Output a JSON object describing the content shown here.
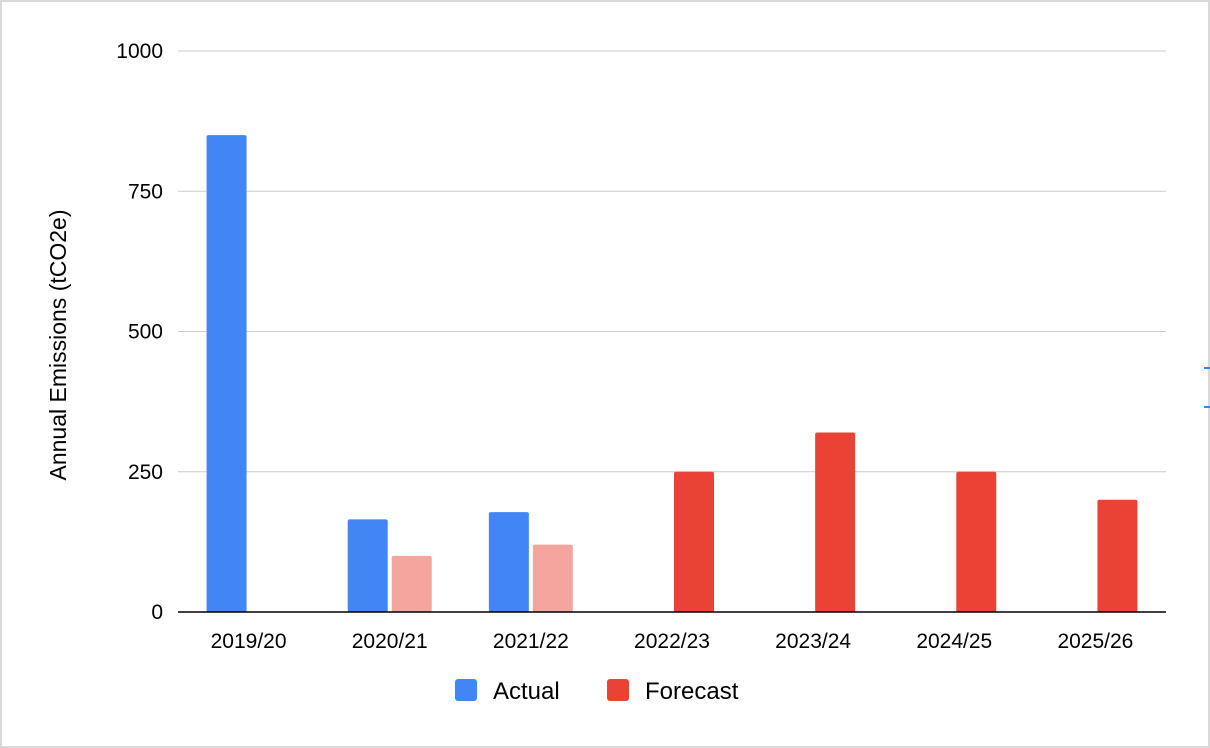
{
  "chart_data": {
    "type": "bar",
    "title": "",
    "xlabel": "",
    "ylabel": "Annual Emissions (tCO2e)",
    "ylim": [
      0,
      1000
    ],
    "yticks": [
      "0",
      "250",
      "500",
      "750",
      "1000"
    ],
    "ytick_values": [
      0,
      250,
      500,
      750,
      1000
    ],
    "grid": true,
    "legend_position": "bottom",
    "categories": [
      "2019/20",
      "2020/21",
      "2021/22",
      "2022/23",
      "2023/24",
      "2024/25",
      "2025/26"
    ],
    "series": [
      {
        "name": "Actual",
        "color": "#4285f4",
        "values": [
          850,
          165,
          178,
          null,
          null,
          null,
          null
        ]
      },
      {
        "name": "Forecast",
        "color": "#ea4335",
        "values": [
          null,
          100,
          120,
          250,
          320,
          250,
          200
        ],
        "point_colors": [
          null,
          "#f4a59e",
          "#f4a59e",
          "#ea4335",
          "#ea4335",
          "#ea4335",
          "#ea4335"
        ]
      }
    ]
  }
}
